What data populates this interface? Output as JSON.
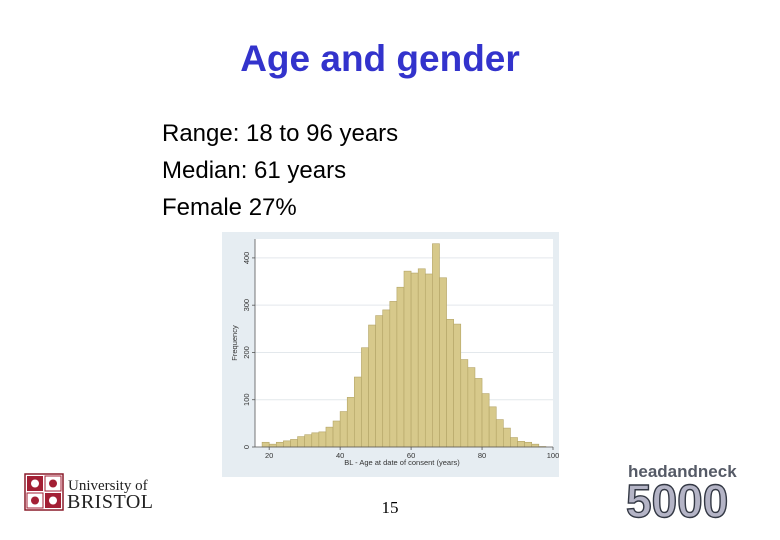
{
  "slide": {
    "title": "Age and gender",
    "bullets": [
      "Range: 18 to 96 years",
      "Median: 61 years",
      "Female 27%"
    ],
    "page_number": "15"
  },
  "logos": {
    "bristol_top": "University of",
    "bristol_bottom": "BRISTOL",
    "hn_top": "headandneck",
    "hn_bottom": "5000"
  },
  "colors": {
    "title": "#3333cc",
    "bar_fill": "#d7c98b",
    "bar_stroke": "#b3a466",
    "plot_bg": "#ffffff",
    "outer_bg": "#e6edf2"
  },
  "chart_data": {
    "type": "bar",
    "xlabel": "BL - Age at date of consent (years)",
    "ylabel": "Frequency",
    "xlim": [
      16,
      100
    ],
    "ylim": [
      0,
      440
    ],
    "xticks": [
      20,
      40,
      60,
      80,
      100
    ],
    "yticks": [
      0,
      100,
      200,
      300,
      400
    ],
    "grid": true,
    "bin_width": 2,
    "bins": [
      {
        "x0": 18,
        "value": 10
      },
      {
        "x0": 20,
        "value": 6
      },
      {
        "x0": 22,
        "value": 10
      },
      {
        "x0": 24,
        "value": 13
      },
      {
        "x0": 26,
        "value": 16
      },
      {
        "x0": 28,
        "value": 22
      },
      {
        "x0": 30,
        "value": 26
      },
      {
        "x0": 32,
        "value": 30
      },
      {
        "x0": 34,
        "value": 32
      },
      {
        "x0": 36,
        "value": 42
      },
      {
        "x0": 38,
        "value": 55
      },
      {
        "x0": 40,
        "value": 75
      },
      {
        "x0": 42,
        "value": 105
      },
      {
        "x0": 44,
        "value": 148
      },
      {
        "x0": 46,
        "value": 210
      },
      {
        "x0": 48,
        "value": 258
      },
      {
        "x0": 50,
        "value": 278
      },
      {
        "x0": 52,
        "value": 290
      },
      {
        "x0": 54,
        "value": 308
      },
      {
        "x0": 56,
        "value": 338
      },
      {
        "x0": 58,
        "value": 372
      },
      {
        "x0": 60,
        "value": 368
      },
      {
        "x0": 62,
        "value": 377
      },
      {
        "x0": 64,
        "value": 366
      },
      {
        "x0": 66,
        "value": 430
      },
      {
        "x0": 68,
        "value": 358
      },
      {
        "x0": 70,
        "value": 270
      },
      {
        "x0": 72,
        "value": 260
      },
      {
        "x0": 74,
        "value": 185
      },
      {
        "x0": 76,
        "value": 168
      },
      {
        "x0": 78,
        "value": 145
      },
      {
        "x0": 80,
        "value": 113
      },
      {
        "x0": 82,
        "value": 85
      },
      {
        "x0": 84,
        "value": 58
      },
      {
        "x0": 86,
        "value": 40
      },
      {
        "x0": 88,
        "value": 20
      },
      {
        "x0": 90,
        "value": 12
      },
      {
        "x0": 92,
        "value": 10
      },
      {
        "x0": 94,
        "value": 6
      },
      {
        "x0": 96,
        "value": 1
      }
    ]
  }
}
